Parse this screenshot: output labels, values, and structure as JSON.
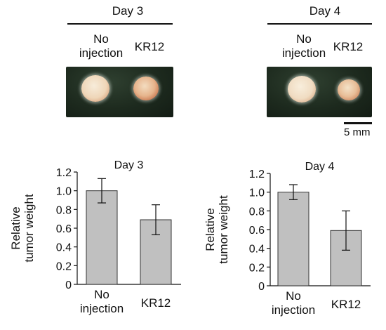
{
  "photos": [
    {
      "title": "Day 3",
      "labels": [
        "No\ninjection",
        "KR12"
      ]
    },
    {
      "title": "Day 4",
      "labels": [
        "No\ninjection",
        "KR12"
      ],
      "scale_bar": "5 mm"
    }
  ],
  "colors": {
    "bar_fill": "#c0c0c0",
    "bar_stroke": "#333333",
    "photo_bg": "#1d2a1e"
  },
  "chart_data": [
    {
      "type": "bar",
      "title": "Day 3",
      "ylabel": "Relative\ntumor weight",
      "xlabel": "",
      "categories": [
        "No\ninjection",
        "KR12"
      ],
      "values": [
        1.0,
        0.69
      ],
      "errors": [
        0.13,
        0.16
      ],
      "ylim": [
        0,
        1.2
      ],
      "yticks": [
        "0",
        "0.2",
        "0.4",
        "0.6",
        "0.8",
        "1.0",
        "1.2"
      ],
      "grid": false
    },
    {
      "type": "bar",
      "title": "Day 4",
      "ylabel": "Relative\ntumor weight",
      "xlabel": "",
      "categories": [
        "No\ninjection",
        "KR12"
      ],
      "values": [
        1.0,
        0.59
      ],
      "errors": [
        0.08,
        0.21
      ],
      "ylim": [
        0,
        1.2
      ],
      "yticks": [
        "0",
        "0.2",
        "0.4",
        "0.6",
        "0.8",
        "1.0",
        "1.2"
      ],
      "grid": false
    }
  ]
}
